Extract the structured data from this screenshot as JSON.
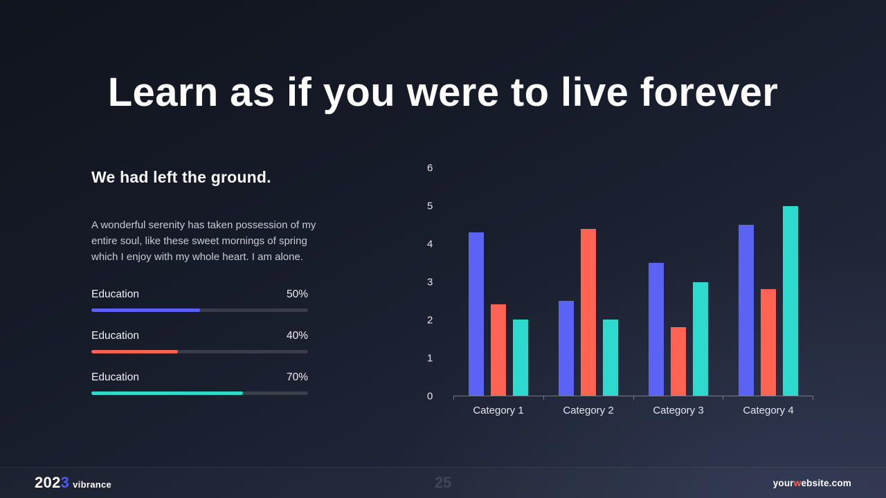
{
  "title": "Learn as if you were to live forever",
  "left": {
    "subtitle": "We had left the ground.",
    "paragraph": "A wonderful serenity has taken possession of my entire soul, like these sweet mornings of spring which I enjoy with my whole heart. I am alone.",
    "progress": [
      {
        "label": "Education",
        "value_label": "50%",
        "percent": 50,
        "color": "#5b63f5"
      },
      {
        "label": "Education",
        "value_label": "40%",
        "percent": 40,
        "color": "#ff6452"
      },
      {
        "label": "Education",
        "value_label": "70%",
        "percent": 70,
        "color": "#2ed9ce"
      }
    ]
  },
  "chart_data": {
    "type": "bar",
    "title": "",
    "xlabel": "",
    "ylabel": "",
    "categories": [
      "Category 1",
      "Category 2",
      "Category 3",
      "Category 4"
    ],
    "series": [
      {
        "name": "blue",
        "color": "#5b63f5",
        "values": [
          4.3,
          2.5,
          3.5,
          4.5
        ]
      },
      {
        "name": "orange",
        "color": "#ff6452",
        "values": [
          2.4,
          4.4,
          1.8,
          2.8
        ]
      },
      {
        "name": "teal",
        "color": "#2ed9ce",
        "values": [
          2.0,
          2.0,
          3.0,
          5.0
        ]
      }
    ],
    "ylim": [
      0,
      6
    ],
    "y_ticks": [
      0,
      1,
      2,
      3,
      4,
      5,
      6
    ],
    "grid": false,
    "legend": "none"
  },
  "footer": {
    "logo": {
      "year_prefix": "202",
      "year_accent": "3",
      "brand": "vibrance"
    },
    "page_number": "25",
    "website": {
      "prefix": "your",
      "accent": "w",
      "suffix": "ebsite.com"
    }
  },
  "colors": {
    "accent_blue": "#5b63f5",
    "accent_orange": "#ff6452",
    "accent_teal": "#2ed9ce",
    "background_top": "#10141d",
    "background_bottom": "#272e42"
  }
}
